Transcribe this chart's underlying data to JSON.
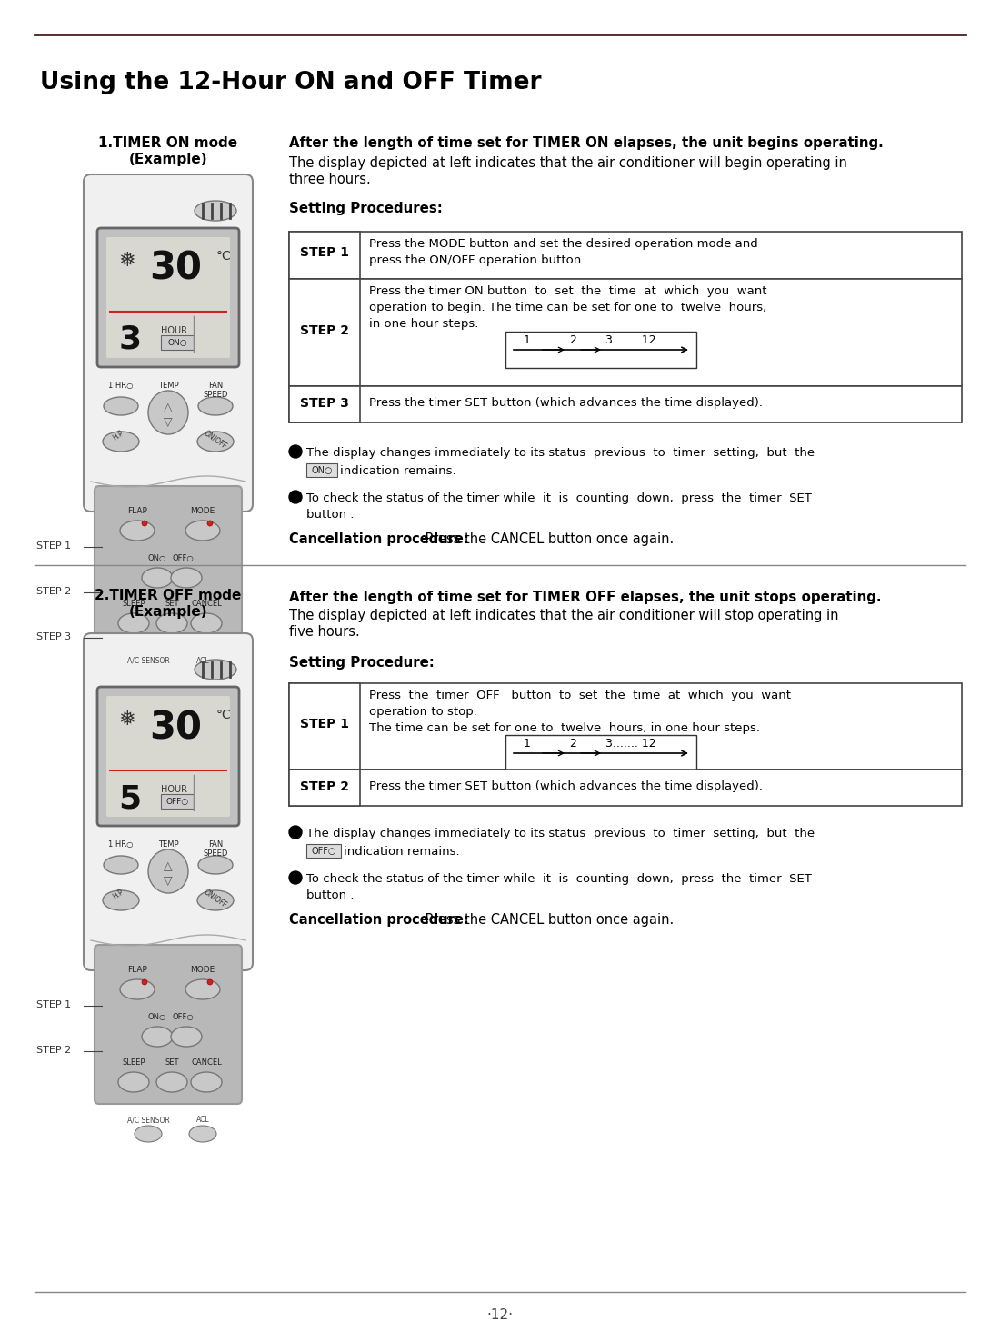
{
  "title": "Using the 12-Hour ON and OFF Timer",
  "page_number": "·12·",
  "bg_color": "#ffffff",
  "top_line_color": "#4a1a1a",
  "div_line_color": "#888888",
  "text_color": "#000000",
  "section1_title_line1": "1.TIMER ON mode",
  "section1_title_line2": "(Example)",
  "section1_bold": "After the length of time set for TIMER ON elapses, the unit begins operating.",
  "section1_desc1": "The display depicted at left indicates that the air conditioner will begin operating in",
  "section1_desc2": "three hours.",
  "section1_procedures": "Setting Procedures:",
  "s1_step1_text1": "Press the MODE button and set the desired operation mode and",
  "s1_step1_text2": "press the ON/OFF operation button.",
  "s1_step2_text1": "Press the timer ON button  to  set  the  time  at  which  you  want",
  "s1_step2_text2": "operation to begin. The time can be set for one to  twelve  hours,",
  "s1_step2_text3": "in one hour steps.",
  "s1_step3_text": "Press the timer SET button (which advances the time displayed).",
  "s1_bullet1": "The display changes immediately to its status  previous  to  timer  setting,  but  the",
  "s1_bullet1b": "indication remains.",
  "s1_bullet1_icon": "ON○",
  "s1_bullet2a": "To check the status of the timer while  it  is  counting  down,  press  the  timer  SET",
  "s1_bullet2b": "button .",
  "s1_cancel_bold": "Cancellation procedure:",
  "s1_cancel_text": " Press the CANCEL button once again.",
  "section2_title_line1": "2.TIMER OFF mode",
  "section2_title_line2": "(Example)",
  "section2_bold": "After the length of time set for TIMER OFF elapses, the unit stops operating.",
  "section2_desc1": "The display depicted at left indicates that the air conditioner will stop operating in",
  "section2_desc2": "five hours.",
  "section2_procedures": "Setting Procedure:",
  "s2_step1_text1": "Press  the  timer  OFF   button  to  set  the  time  at  which  you  want",
  "s2_step1_text2": "operation to stop.",
  "s2_step1_text3": "The time can be set for one to  twelve  hours, in one hour steps.",
  "s2_step2_text": "Press the timer SET button (which advances the time displayed).",
  "s2_bullet1": "The display changes immediately to its status  previous  to  timer  setting,  but  the",
  "s2_bullet1b": "indication remains.",
  "s2_bullet1_icon": "OFF○",
  "s2_bullet2a": "To check the status of the timer while  it  is  counting  down,  press  the  timer  SET",
  "s2_bullet2b": "button .",
  "s2_cancel_bold": "Cancellation procedure:",
  "s2_cancel_text": " Press the CANCEL button once again.",
  "remote_body_color": "#d5d5d5",
  "remote_edge_color": "#888888",
  "remote_display_bg": "#c0c0c0",
  "remote_display_inner": "#d8d8d0",
  "remote_btn_color": "#c8c8c8",
  "remote_lower_bg": "#b8b8b8",
  "remote_lower_edge": "#999999"
}
